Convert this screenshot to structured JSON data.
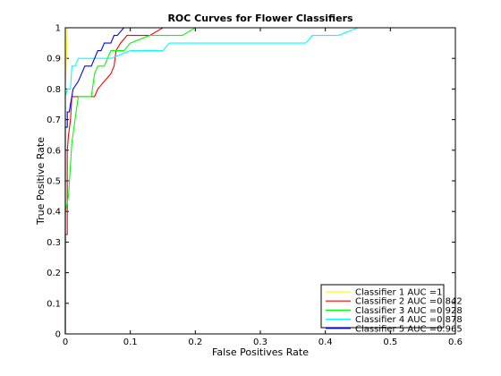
{
  "chart_data": {
    "type": "line",
    "title": "ROC Curves for Flower Classifiers",
    "xlabel": "False Positives Rate",
    "ylabel": "True Positive Rate",
    "xlim": [
      0,
      0.6
    ],
    "ylim": [
      0,
      1
    ],
    "xticks": [
      "0",
      "0.1",
      "0.2",
      "0.3",
      "0.4",
      "0.5",
      "0.6"
    ],
    "yticks": [
      "0",
      "0.1",
      "0.2",
      "0.3",
      "0.4",
      "0.5",
      "0.6",
      "0.7",
      "0.8",
      "0.9",
      "1"
    ],
    "grid": false,
    "legend_position": "bottom-right",
    "series": [
      {
        "name": "Classifier 1 AUC =1",
        "color": "#ffff00",
        "x": [
          0,
          0,
          0.003,
          0.006,
          0.09,
          0.6
        ],
        "y": [
          0,
          0.8,
          1.0,
          1.0,
          1.0,
          1.0
        ]
      },
      {
        "name": "Classifier 2 AUC =0.842",
        "color": "#ff0000",
        "x": [
          0,
          0,
          0.003,
          0.003,
          0.005,
          0.008,
          0.01,
          0.015,
          0.045,
          0.05,
          0.06,
          0.07,
          0.075,
          0.078,
          0.085,
          0.095,
          0.1,
          0.13,
          0.15,
          0.6
        ],
        "y": [
          0,
          0.325,
          0.325,
          0.6,
          0.65,
          0.7,
          0.775,
          0.775,
          0.775,
          0.8,
          0.825,
          0.85,
          0.875,
          0.925,
          0.95,
          0.975,
          0.975,
          0.975,
          1.0,
          1.0
        ]
      },
      {
        "name": "Classifier 3 AUC =0.928",
        "color": "#00ff00",
        "x": [
          0,
          0,
          0.005,
          0.01,
          0.015,
          0.02,
          0.03,
          0.04,
          0.045,
          0.05,
          0.06,
          0.065,
          0.07,
          0.09,
          0.1,
          0.13,
          0.14,
          0.18,
          0.2,
          0.6
        ],
        "y": [
          0,
          0.4,
          0.45,
          0.625,
          0.7,
          0.775,
          0.775,
          0.775,
          0.85,
          0.875,
          0.875,
          0.9,
          0.925,
          0.925,
          0.95,
          0.975,
          0.975,
          0.975,
          1.0,
          1.0
        ]
      },
      {
        "name": "Classifier 4 AUC =0.878",
        "color": "#00ffff",
        "x": [
          0,
          0,
          0.003,
          0.008,
          0.01,
          0.015,
          0.02,
          0.05,
          0.07,
          0.1,
          0.15,
          0.16,
          0.2,
          0.35,
          0.37,
          0.38,
          0.42,
          0.45,
          0.6
        ],
        "y": [
          0,
          0.775,
          0.8,
          0.8,
          0.875,
          0.875,
          0.9,
          0.9,
          0.9,
          0.925,
          0.925,
          0.95,
          0.95,
          0.95,
          0.95,
          0.975,
          0.975,
          1.0,
          1.0
        ]
      },
      {
        "name": "Classifier 5 AUC =0.965",
        "color": "#0000ff",
        "x": [
          0,
          0,
          0.003,
          0.003,
          0.006,
          0.008,
          0.01,
          0.012,
          0.02,
          0.025,
          0.03,
          0.035,
          0.04,
          0.045,
          0.05,
          0.055,
          0.06,
          0.07,
          0.075,
          0.08,
          0.09,
          0.1,
          0.6
        ],
        "y": [
          0,
          0.675,
          0.675,
          0.725,
          0.725,
          0.75,
          0.775,
          0.8,
          0.825,
          0.85,
          0.875,
          0.875,
          0.875,
          0.9,
          0.925,
          0.925,
          0.95,
          0.95,
          0.975,
          0.975,
          1.0,
          1.0,
          1.0
        ]
      }
    ]
  }
}
